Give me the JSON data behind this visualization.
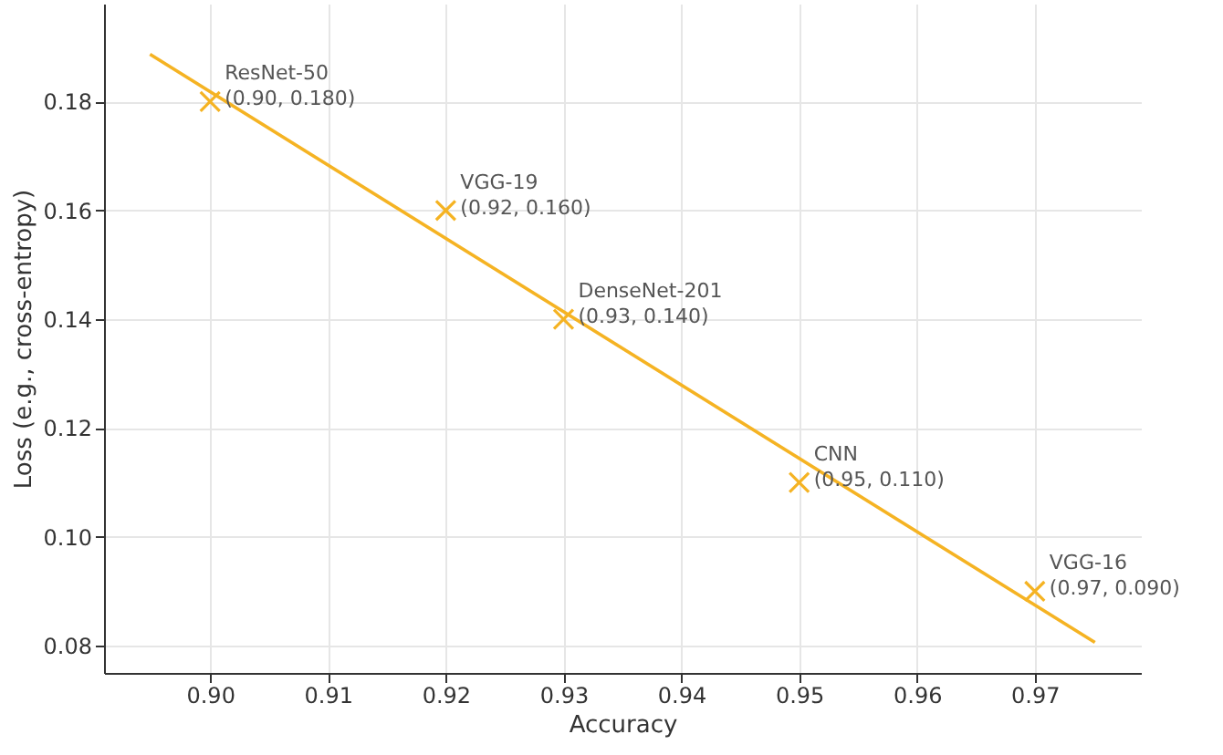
{
  "chart_data": {
    "type": "scatter",
    "xlabel": "Accuracy",
    "ylabel": "Loss (e.g., cross-entropy)",
    "series": [
      {
        "marker": "cross",
        "color": "#f5b323",
        "x": [
          0.9,
          0.92,
          0.93,
          0.95,
          0.97
        ],
        "values": [
          0.18,
          0.16,
          0.14,
          0.11,
          0.09
        ]
      },
      {
        "type": "line",
        "color": "#f5b323",
        "x": [
          0.8949,
          0.9751
        ],
        "values": [
          0.1887,
          0.0806
        ]
      }
    ],
    "annotations": [
      {
        "text": "ResNet-50\n(0.90, 0.180)",
        "x": 0.9,
        "y": 0.18
      },
      {
        "text": "VGG-19\n(0.92, 0.160)",
        "x": 0.92,
        "y": 0.16
      },
      {
        "text": "DenseNet-201\n(0.93, 0.140)",
        "x": 0.93,
        "y": 0.14
      },
      {
        "text": "CNN\n(0.95, 0.110)",
        "x": 0.95,
        "y": 0.11
      },
      {
        "text": "VGG-16\n(0.97, 0.090)",
        "x": 0.97,
        "y": 0.09
      }
    ],
    "xlim": [
      0.891,
      0.979
    ],
    "ylim": [
      0.075,
      0.198
    ],
    "xticks": [
      {
        "value": 0.9,
        "label": "0.90"
      },
      0.91,
      0.92,
      0.93,
      0.94,
      0.95,
      0.96,
      0.97
    ],
    "yticks": [
      0.08,
      {
        "value": 0.1,
        "label": "0.10"
      },
      0.12,
      0.14,
      0.16,
      0.18
    ],
    "grid": true,
    "line_style": "solid"
  }
}
